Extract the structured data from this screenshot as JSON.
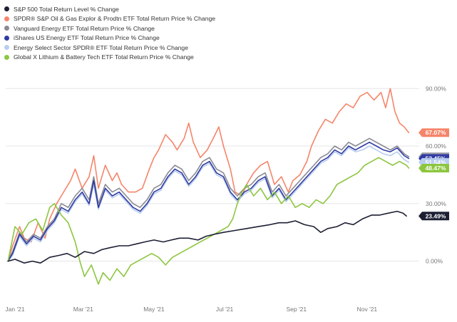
{
  "chart_data": {
    "type": "line",
    "title": "",
    "xlabel": "",
    "ylabel": "",
    "x_tick_labels": [
      "Jan '21",
      "Mar '21",
      "May '21",
      "Jul '21",
      "Sep '21",
      "Nov '21"
    ],
    "x_tick_days": [
      0,
      59,
      120,
      181,
      243,
      304
    ],
    "x_range_days": [
      -8,
      349
    ],
    "y_tick_values": [
      0,
      30,
      60,
      90
    ],
    "y_tick_labels": [
      "0.00%",
      "30.00%",
      "60.00%",
      "90.00%"
    ],
    "ylim": [
      -18,
      102
    ],
    "grid": true,
    "legend_position": "top-left",
    "series": [
      {
        "name": "S&P 500 Total Return Level % Change",
        "color": "#1c1f33",
        "end_label": "23.49%",
        "days": [
          -6,
          0,
          8,
          15,
          22,
          30,
          38,
          45,
          52,
          60,
          68,
          75,
          82,
          90,
          98,
          105,
          112,
          120,
          128,
          135,
          142,
          150,
          158,
          165,
          172,
          180,
          190,
          200,
          210,
          220,
          228,
          235,
          242,
          250,
          258,
          264,
          270,
          278,
          285,
          292,
          300,
          308,
          315,
          322,
          330,
          335,
          338
        ],
        "values": [
          0,
          1,
          -1,
          0,
          -1,
          2,
          3,
          4,
          2,
          5,
          4,
          6,
          7,
          8,
          8,
          9,
          10,
          11,
          10,
          11,
          12,
          12,
          11,
          13,
          14,
          15,
          16,
          17,
          18,
          19,
          20,
          20,
          21,
          19,
          18,
          15,
          17,
          18,
          20,
          19,
          22,
          24,
          24,
          25,
          26,
          25,
          23.5
        ]
      },
      {
        "name": "SPDR® S&P Oil & Gas Explor & Prodtn ETF Total Return Price % Change",
        "color": "#f5856a",
        "end_label": "67.07%",
        "days": [
          -6,
          -2,
          4,
          8,
          14,
          20,
          26,
          30,
          36,
          42,
          48,
          52,
          58,
          64,
          68,
          72,
          78,
          84,
          88,
          92,
          98,
          104,
          110,
          116,
          120,
          124,
          130,
          136,
          140,
          146,
          150,
          154,
          160,
          166,
          172,
          176,
          180,
          186,
          190,
          196,
          200,
          206,
          212,
          218,
          224,
          230,
          236,
          240,
          246,
          252,
          256,
          262,
          268,
          274,
          280,
          286,
          292,
          298,
          304,
          310,
          316,
          320,
          324,
          328,
          332,
          336,
          340
        ],
        "values": [
          0,
          8,
          18,
          12,
          10,
          20,
          12,
          22,
          30,
          36,
          42,
          48,
          38,
          44,
          55,
          38,
          50,
          42,
          46,
          40,
          36,
          36,
          38,
          48,
          54,
          58,
          66,
          62,
          58,
          64,
          72,
          62,
          54,
          58,
          65,
          70,
          60,
          48,
          36,
          34,
          40,
          46,
          50,
          52,
          40,
          44,
          36,
          42,
          45,
          52,
          60,
          68,
          74,
          72,
          78,
          82,
          80,
          86,
          88,
          84,
          88,
          80,
          90,
          78,
          72,
          70,
          67
        ]
      },
      {
        "name": "Vanguard Energy ETF Total Return Price % Change",
        "color": "#8a8a95",
        "end_label": "54.43%",
        "days": [
          -6,
          -2,
          4,
          10,
          16,
          22,
          28,
          34,
          40,
          46,
          52,
          58,
          64,
          68,
          72,
          78,
          84,
          90,
          96,
          102,
          108,
          114,
          120,
          126,
          132,
          138,
          144,
          150,
          156,
          162,
          168,
          174,
          180,
          186,
          192,
          198,
          204,
          210,
          216,
          222,
          228,
          234,
          240,
          246,
          252,
          258,
          264,
          270,
          276,
          282,
          288,
          294,
          300,
          306,
          312,
          318,
          324,
          330,
          336,
          340
        ],
        "values": [
          0,
          5,
          15,
          10,
          14,
          12,
          18,
          22,
          30,
          28,
          34,
          38,
          32,
          44,
          30,
          40,
          36,
          38,
          34,
          30,
          28,
          32,
          38,
          40,
          46,
          50,
          48,
          42,
          46,
          52,
          54,
          48,
          46,
          38,
          34,
          38,
          40,
          44,
          46,
          36,
          40,
          34,
          38,
          42,
          46,
          50,
          54,
          56,
          60,
          58,
          62,
          60,
          62,
          64,
          62,
          60,
          58,
          60,
          56,
          54.4
        ]
      },
      {
        "name": "iShares US Energy ETF Total Return Price % Change",
        "color": "#2f3aa3",
        "end_label": "53.45%",
        "days": [
          -6,
          -2,
          4,
          10,
          16,
          22,
          28,
          34,
          40,
          46,
          52,
          58,
          64,
          68,
          72,
          78,
          84,
          90,
          96,
          102,
          108,
          114,
          120,
          126,
          132,
          138,
          144,
          150,
          156,
          162,
          168,
          174,
          180,
          186,
          192,
          198,
          204,
          210,
          216,
          222,
          228,
          234,
          240,
          246,
          252,
          258,
          264,
          270,
          276,
          282,
          288,
          294,
          300,
          306,
          312,
          318,
          324,
          330,
          336,
          340
        ],
        "values": [
          0,
          4,
          14,
          9,
          13,
          11,
          17,
          21,
          28,
          26,
          32,
          36,
          30,
          42,
          28,
          38,
          34,
          36,
          32,
          28,
          26,
          30,
          36,
          38,
          44,
          48,
          46,
          40,
          44,
          50,
          52,
          46,
          44,
          36,
          32,
          36,
          38,
          42,
          44,
          34,
          38,
          32,
          36,
          40,
          44,
          48,
          52,
          54,
          58,
          56,
          60,
          58,
          60,
          62,
          60,
          58,
          57,
          59,
          55,
          53.5
        ]
      },
      {
        "name": "Energy Select Sector SPDR® ETF Total Return Price % Change",
        "color": "#b8cdef",
        "end_label": "51.54%",
        "days": [
          -6,
          -2,
          4,
          10,
          16,
          22,
          28,
          34,
          40,
          46,
          52,
          58,
          64,
          68,
          72,
          78,
          84,
          90,
          96,
          102,
          108,
          114,
          120,
          126,
          132,
          138,
          144,
          150,
          156,
          162,
          168,
          174,
          180,
          186,
          192,
          198,
          204,
          210,
          216,
          222,
          228,
          234,
          240,
          246,
          252,
          258,
          264,
          270,
          276,
          282,
          288,
          294,
          300,
          306,
          312,
          318,
          324,
          330,
          336,
          340
        ],
        "values": [
          0,
          3,
          13,
          8,
          12,
          10,
          16,
          20,
          27,
          25,
          31,
          35,
          29,
          40,
          27,
          37,
          33,
          35,
          31,
          27,
          25,
          29,
          35,
          37,
          43,
          47,
          45,
          39,
          43,
          49,
          51,
          45,
          43,
          35,
          31,
          35,
          37,
          41,
          43,
          33,
          37,
          31,
          35,
          39,
          43,
          47,
          51,
          53,
          57,
          55,
          59,
          57,
          58,
          60,
          58,
          56,
          55,
          57,
          53,
          51.5
        ]
      },
      {
        "name": "Global X Lithium & Battery Tech ETF Total Return Price % Change",
        "color": "#8cc63f",
        "end_label": "48.47%",
        "days": [
          -6,
          0,
          6,
          12,
          18,
          24,
          30,
          34,
          40,
          46,
          52,
          56,
          60,
          66,
          72,
          76,
          82,
          88,
          94,
          100,
          106,
          112,
          118,
          124,
          130,
          136,
          142,
          148,
          154,
          160,
          166,
          172,
          178,
          184,
          188,
          192,
          196,
          200,
          206,
          212,
          218,
          224,
          230,
          236,
          242,
          248,
          254,
          260,
          266,
          272,
          278,
          284,
          290,
          296,
          302,
          308,
          314,
          320,
          326,
          332,
          338,
          340
        ],
        "values": [
          0,
          18,
          14,
          20,
          22,
          16,
          28,
          30,
          24,
          20,
          10,
          0,
          -8,
          -2,
          -12,
          -6,
          -10,
          -4,
          -8,
          -2,
          0,
          2,
          4,
          2,
          -2,
          2,
          4,
          6,
          8,
          10,
          12,
          14,
          16,
          18,
          22,
          30,
          36,
          40,
          34,
          38,
          32,
          36,
          30,
          34,
          28,
          30,
          28,
          32,
          30,
          34,
          40,
          42,
          44,
          46,
          50,
          52,
          54,
          52,
          50,
          52,
          50,
          48.5
        ]
      }
    ]
  }
}
